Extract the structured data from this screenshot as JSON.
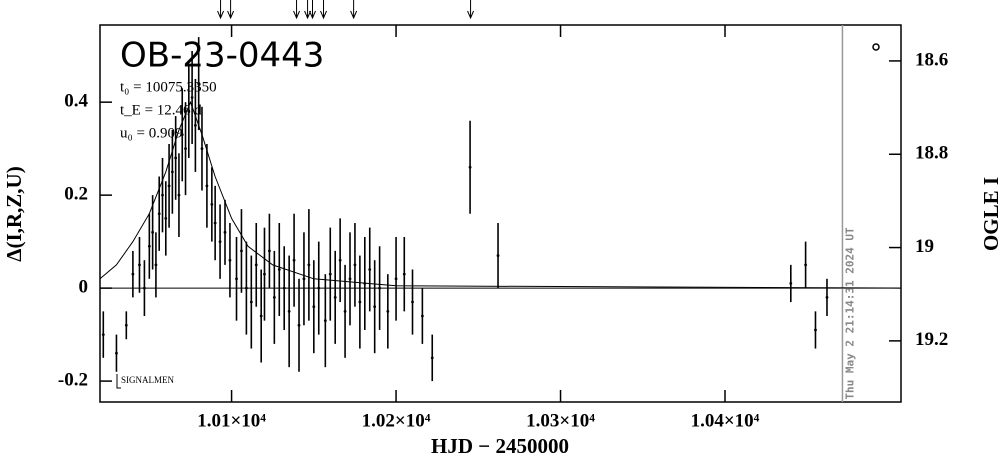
{
  "chart_data": {
    "type": "errorbar",
    "title": "OB-23-0443",
    "xlabel": "HJD − 2450000",
    "ylabel": "Δ(I,R,Z,U)",
    "y2label": "OGLE I",
    "parameters": [
      "t₀ = 10075.3350",
      "t_E = 12.46 d",
      "u₀ = 0.909"
    ],
    "source_label": "SIGNALMEN",
    "timestamp": "Thu May  2 21:14:31 2024 UT",
    "xlim": [
      10020,
      10507
    ],
    "ylim": [
      -0.245,
      0.566
    ],
    "y2lim": [
      19.331,
      18.523
    ],
    "xticks": [
      {
        "value": 10100,
        "label": "1.01×10⁴"
      },
      {
        "value": 10200,
        "label": "1.02×10⁴"
      },
      {
        "value": 10300,
        "label": "1.03×10⁴"
      },
      {
        "value": 10400,
        "label": "1.04×10⁴"
      }
    ],
    "yticks": [
      -0.2,
      0,
      0.2,
      0.4
    ],
    "y2ticks": [
      18.6,
      18.8,
      19,
      19.2
    ],
    "baseline": 0,
    "timestamp_x": 10471.4,
    "arrows_x": [
      10093.3,
      10099.4,
      10139.5,
      10146.2,
      10149.2,
      10155.9,
      10174.2,
      10245.3
    ],
    "model": {
      "color": "#000000",
      "x": [
        10020,
        10030,
        10040,
        10050,
        10060,
        10068,
        10075,
        10082,
        10090,
        10100,
        10110,
        10125,
        10150,
        10200,
        10507
      ],
      "values": [
        0.02,
        0.05,
        0.1,
        0.16,
        0.25,
        0.34,
        0.4,
        0.33,
        0.24,
        0.15,
        0.09,
        0.05,
        0.02,
        0.005,
        0
      ]
    },
    "x": [
      10022,
      10030,
      10036,
      10040,
      10044,
      10047,
      10050,
      10052,
      10054,
      10056,
      10058,
      10060,
      10062,
      10064,
      10066,
      10068,
      10070,
      10072,
      10074,
      10076,
      10078,
      10080,
      10082,
      10085,
      10088,
      10090,
      10093,
      10096,
      10099,
      10103,
      10106,
      10109,
      10112,
      10115,
      10118,
      10120,
      10123,
      10126,
      10129,
      10132,
      10135,
      10138,
      10141,
      10144,
      10147,
      10150,
      10153,
      10157,
      10160,
      10163,
      10166,
      10169,
      10172,
      10175,
      10178,
      10181,
      10184,
      10187,
      10190,
      10195,
      10200,
      10205,
      10210,
      10216,
      10222,
      10245,
      10262,
      10440,
      10449,
      10455,
      10462
    ],
    "series": [
      {
        "name": "OGLE",
        "color": "#000000",
        "values": [
          -0.1,
          -0.14,
          -0.08,
          0.03,
          0.05,
          0.0,
          0.09,
          0.12,
          0.05,
          0.16,
          0.2,
          0.15,
          0.22,
          0.25,
          0.28,
          0.2,
          0.33,
          0.3,
          0.38,
          0.41,
          0.35,
          0.44,
          0.3,
          0.22,
          0.18,
          0.14,
          0.1,
          0.12,
          0.06,
          0.02,
          0.08,
          0.0,
          -0.03,
          0.05,
          -0.06,
          0.03,
          0.08,
          -0.02,
          0.04,
          0.0,
          -0.05,
          0.06,
          -0.08,
          0.02,
          0.05,
          -0.04,
          0.0,
          -0.07,
          0.03,
          -0.02,
          0.06,
          -0.05,
          0.02,
          0.05,
          -0.03,
          0.01,
          0.04,
          -0.04,
          0.0,
          -0.05,
          0.02,
          0.03,
          -0.03,
          -0.06,
          -0.15,
          0.26,
          0.07,
          0.01,
          0.05,
          -0.09,
          -0.02
        ],
        "errors": [
          0.05,
          0.04,
          0.03,
          0.05,
          0.06,
          0.06,
          0.07,
          0.08,
          0.07,
          0.08,
          0.08,
          0.08,
          0.09,
          0.09,
          0.09,
          0.09,
          0.1,
          0.1,
          0.1,
          0.1,
          0.1,
          0.1,
          0.09,
          0.09,
          0.08,
          0.08,
          0.08,
          0.07,
          0.08,
          0.09,
          0.09,
          0.1,
          0.1,
          0.09,
          0.1,
          0.1,
          0.08,
          0.1,
          0.1,
          0.09,
          0.12,
          0.1,
          0.1,
          0.1,
          0.12,
          0.1,
          0.1,
          0.1,
          0.1,
          0.1,
          0.09,
          0.1,
          0.1,
          0.09,
          0.1,
          0.1,
          0.09,
          0.1,
          0.09,
          0.08,
          0.09,
          0.08,
          0.07,
          0.06,
          0.05,
          0.1,
          0.07,
          0.04,
          0.05,
          0.04,
          0.04
        ]
      }
    ]
  }
}
